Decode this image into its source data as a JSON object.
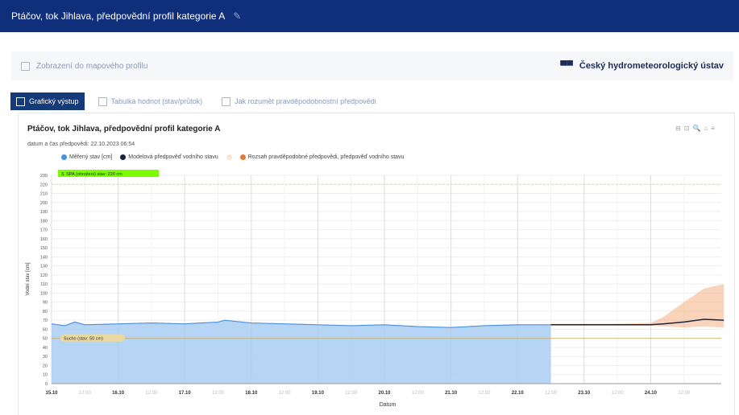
{
  "header": {
    "title": "Ptáčov, tok Jihlava, předpovědní profil kategorie A",
    "edit_icon": "pencil-icon"
  },
  "infobar": {
    "link": "Zobrazení do mapového profilu",
    "org": "Český hydrometeorologický ústav"
  },
  "tabs": [
    {
      "label": "Grafický výstup",
      "active": true
    },
    {
      "label": "Tabulka hodnot (stav/průtok)"
    },
    {
      "label": "Jak rozumět pravděpodobnostní předpovědi"
    }
  ],
  "chart": {
    "title": "Ptáčov, tok Jihlava, předpovědní profil kategorie A",
    "subtitle": "datum a čas předpovědi: 22.10.2023 06:54",
    "legend": [
      "Měřený stav [cm]",
      "Modelová předpověď vodního stavu",
      "",
      "Rozsah pravděpodobné předpovědi, předpověď vodního stavu"
    ]
  },
  "colors": {
    "measured": "#4a90e2",
    "forecast": "#1b2440",
    "band": "#f4b183",
    "spa": "#7cfc00",
    "drought": "#e8d9a0"
  },
  "chart_data": {
    "type": "area",
    "xlabel": "Datum",
    "ylabel": "Vodní stav [cm]",
    "ylim": [
      0,
      230
    ],
    "yticks": [
      0,
      10,
      20,
      30,
      40,
      50,
      60,
      70,
      80,
      90,
      100,
      110,
      120,
      130,
      140,
      150,
      160,
      170,
      180,
      190,
      200,
      210,
      220,
      230
    ],
    "xticks": [
      "15.10",
      "12:00",
      "16.10",
      "12:00",
      "17.10",
      "12:00",
      "18.10",
      "12:00",
      "19.10",
      "12:00",
      "20.10",
      "12:00",
      "21.10",
      "12:00",
      "22.10",
      "12:00",
      "23.10",
      "12:00",
      "24.10",
      "12:00"
    ],
    "thresholds": [
      {
        "label": "3. SPA (ohrožení) stav: 220 cm",
        "value": 220
      },
      {
        "label": "Sucho (stav: 50 cm)",
        "value": 50
      }
    ],
    "measured": {
      "x_days": [
        0,
        0.2,
        0.35,
        0.5,
        1,
        1.5,
        2,
        2.5,
        2.6,
        3,
        3.5,
        4,
        4.5,
        5,
        5.5,
        6,
        6.5,
        7,
        7.5
      ],
      "values": [
        66,
        64,
        68,
        65,
        66,
        67,
        66,
        68,
        70,
        67,
        66,
        65,
        64,
        65,
        63,
        62,
        64,
        65,
        65
      ]
    },
    "forecast": {
      "x_days": [
        7.5,
        8,
        8.5,
        9,
        9.2,
        9.5,
        9.8,
        10.1
      ],
      "values": [
        65,
        65,
        65,
        65,
        66,
        68,
        71,
        70
      ]
    },
    "band": {
      "x_days": [
        7.5,
        8,
        8.5,
        9,
        9.2,
        9.5,
        9.8,
        10.1
      ],
      "low": [
        64,
        64,
        64,
        64,
        63,
        62,
        63,
        62
      ],
      "high": [
        66,
        66,
        66,
        67,
        74,
        90,
        105,
        110
      ]
    }
  }
}
